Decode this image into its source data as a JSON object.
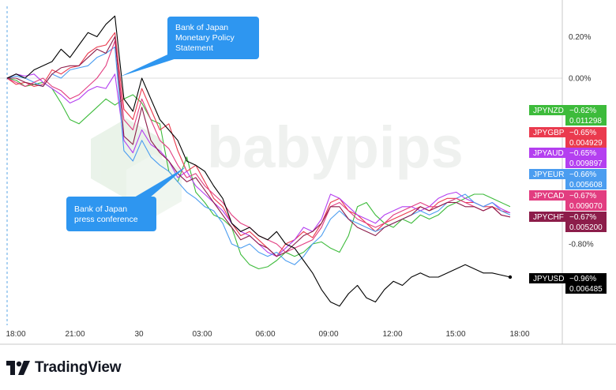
{
  "brand": {
    "name": "TradingView",
    "watermark": "babypips"
  },
  "callouts": {
    "statement": [
      "Bank of Japan",
      "Monetary Policy",
      "Statement"
    ],
    "conference": [
      "Bank of Japan",
      "press conference"
    ]
  },
  "colors": {
    "callout": "#2e96f0",
    "grid": "#e6e6e6",
    "axis": "#9aa0a6",
    "vline": "#59a6e6"
  },
  "chart_data": {
    "type": "line",
    "x_ticks": [
      "18:00",
      "21:00",
      "30",
      "03:00",
      "06:00",
      "09:00",
      "12:00",
      "15:00",
      "18:00"
    ],
    "y_ticks": [
      "0.20%",
      "0.00%",
      "-0.80%"
    ],
    "ylim": [
      -1.2,
      0.35
    ],
    "series": [
      {
        "name": "JPYNZD",
        "color": "#3dbb3b",
        "last_pct": "−0.62%",
        "last_price": "0.011298",
        "values": [
          0.0,
          -0.01,
          -0.04,
          -0.03,
          -0.02,
          -0.05,
          -0.12,
          -0.2,
          -0.22,
          -0.18,
          -0.14,
          -0.1,
          -0.13,
          -0.1,
          -0.08,
          -0.12,
          -0.2,
          -0.22,
          -0.45,
          -0.5,
          -0.38,
          -0.55,
          -0.6,
          -0.66,
          -0.68,
          -0.72,
          -0.85,
          -0.9,
          -0.92,
          -0.91,
          -0.88,
          -0.84,
          -0.86,
          -0.84,
          -0.8,
          -0.79,
          -0.82,
          -0.84,
          -0.76,
          -0.62,
          -0.6,
          -0.66,
          -0.7,
          -0.72,
          -0.68,
          -0.7,
          -0.66,
          -0.68,
          -0.66,
          -0.62,
          -0.6,
          -0.58,
          -0.56,
          -0.56,
          -0.58,
          -0.6,
          -0.62
        ]
      },
      {
        "name": "JPYGBP",
        "color": "#ea3a4e",
        "last_pct": "−0.65%",
        "last_price": "0.004929",
        "values": [
          0.0,
          -0.03,
          -0.02,
          -0.04,
          -0.03,
          0.04,
          0.02,
          0.05,
          0.06,
          0.12,
          0.15,
          0.16,
          0.22,
          -0.15,
          -0.2,
          -0.05,
          -0.15,
          -0.25,
          -0.22,
          -0.35,
          -0.45,
          -0.42,
          -0.5,
          -0.58,
          -0.62,
          -0.7,
          -0.76,
          -0.74,
          -0.78,
          -0.82,
          -0.86,
          -0.8,
          -0.78,
          -0.74,
          -0.77,
          -0.7,
          -0.6,
          -0.58,
          -0.64,
          -0.66,
          -0.7,
          -0.74,
          -0.7,
          -0.68,
          -0.66,
          -0.64,
          -0.62,
          -0.64,
          -0.6,
          -0.58,
          -0.58,
          -0.6,
          -0.6,
          -0.62,
          -0.62,
          -0.64,
          -0.65
        ]
      },
      {
        "name": "JPYAUD",
        "color": "#b43ff0",
        "last_pct": "−0.65%",
        "last_price": "0.009897",
        "values": [
          0.0,
          0.02,
          0.01,
          0.02,
          -0.02,
          -0.05,
          -0.08,
          -0.12,
          -0.1,
          -0.06,
          -0.04,
          -0.05,
          0.02,
          -0.3,
          -0.36,
          -0.25,
          -0.32,
          -0.35,
          -0.4,
          -0.48,
          -0.45,
          -0.52,
          -0.56,
          -0.6,
          -0.64,
          -0.7,
          -0.74,
          -0.76,
          -0.8,
          -0.84,
          -0.86,
          -0.82,
          -0.78,
          -0.72,
          -0.74,
          -0.68,
          -0.56,
          -0.58,
          -0.62,
          -0.66,
          -0.68,
          -0.7,
          -0.66,
          -0.64,
          -0.62,
          -0.62,
          -0.64,
          -0.62,
          -0.58,
          -0.56,
          -0.55,
          -0.58,
          -0.6,
          -0.62,
          -0.6,
          -0.63,
          -0.65
        ]
      },
      {
        "name": "JPYEUR",
        "color": "#4b9df0",
        "last_pct": "−0.66%",
        "last_price": "0.005608",
        "values": [
          0.0,
          0.01,
          0.0,
          -0.02,
          -0.04,
          0.02,
          0.0,
          0.04,
          0.05,
          0.06,
          0.1,
          0.12,
          0.15,
          -0.35,
          -0.4,
          -0.3,
          -0.38,
          -0.42,
          -0.45,
          -0.5,
          -0.55,
          -0.58,
          -0.62,
          -0.64,
          -0.7,
          -0.8,
          -0.82,
          -0.8,
          -0.84,
          -0.86,
          -0.84,
          -0.88,
          -0.9,
          -0.86,
          -0.8,
          -0.76,
          -0.68,
          -0.64,
          -0.68,
          -0.7,
          -0.72,
          -0.74,
          -0.72,
          -0.7,
          -0.68,
          -0.66,
          -0.64,
          -0.66,
          -0.64,
          -0.6,
          -0.58,
          -0.56,
          -0.6,
          -0.62,
          -0.6,
          -0.64,
          -0.66
        ]
      },
      {
        "name": "JPYCAD",
        "color": "#e23d80",
        "last_pct": "−0.67%",
        "last_price": "0.009070",
        "values": [
          0.0,
          -0.02,
          -0.04,
          -0.02,
          0.0,
          -0.04,
          -0.06,
          -0.1,
          -0.08,
          -0.04,
          0.0,
          0.06,
          0.18,
          -0.2,
          -0.25,
          -0.1,
          -0.2,
          -0.3,
          -0.34,
          -0.42,
          -0.48,
          -0.46,
          -0.52,
          -0.56,
          -0.6,
          -0.66,
          -0.7,
          -0.72,
          -0.76,
          -0.78,
          -0.8,
          -0.84,
          -0.82,
          -0.8,
          -0.78,
          -0.72,
          -0.62,
          -0.6,
          -0.64,
          -0.68,
          -0.7,
          -0.72,
          -0.7,
          -0.66,
          -0.64,
          -0.62,
          -0.6,
          -0.62,
          -0.62,
          -0.6,
          -0.58,
          -0.6,
          -0.62,
          -0.64,
          -0.62,
          -0.66,
          -0.67
        ]
      },
      {
        "name": "JPYCHF",
        "color": "#8c1d4a",
        "last_pct": "−0.67%",
        "last_price": "0.005200",
        "values": [
          0.0,
          0.0,
          -0.02,
          -0.03,
          -0.04,
          0.02,
          0.05,
          0.06,
          0.06,
          0.1,
          0.14,
          0.12,
          0.2,
          -0.28,
          -0.32,
          -0.14,
          -0.3,
          -0.36,
          -0.4,
          -0.46,
          -0.5,
          -0.48,
          -0.54,
          -0.6,
          -0.66,
          -0.72,
          -0.78,
          -0.76,
          -0.8,
          -0.82,
          -0.86,
          -0.84,
          -0.8,
          -0.76,
          -0.74,
          -0.7,
          -0.62,
          -0.62,
          -0.68,
          -0.72,
          -0.74,
          -0.76,
          -0.72,
          -0.7,
          -0.68,
          -0.66,
          -0.62,
          -0.64,
          -0.62,
          -0.6,
          -0.6,
          -0.62,
          -0.62,
          -0.64,
          -0.62,
          -0.66,
          -0.67
        ]
      },
      {
        "name": "JPYUSD",
        "color": "#000000",
        "last_pct": "−0.96%",
        "last_price": "0.006485",
        "values": [
          0.0,
          0.02,
          0.0,
          0.04,
          0.06,
          0.08,
          0.14,
          0.1,
          0.16,
          0.22,
          0.2,
          0.26,
          0.3,
          -0.1,
          -0.16,
          0.0,
          -0.1,
          -0.2,
          -0.25,
          -0.3,
          -0.4,
          -0.42,
          -0.45,
          -0.52,
          -0.58,
          -0.7,
          -0.74,
          -0.72,
          -0.76,
          -0.78,
          -0.74,
          -0.8,
          -0.82,
          -0.88,
          -0.94,
          -1.02,
          -1.08,
          -1.1,
          -1.04,
          -1.0,
          -1.06,
          -1.08,
          -1.02,
          -0.98,
          -1.0,
          -0.96,
          -0.94,
          -0.96,
          -0.96,
          -0.94,
          -0.92,
          -0.9,
          -0.92,
          -0.94,
          -0.94,
          -0.95,
          -0.96
        ]
      }
    ]
  }
}
